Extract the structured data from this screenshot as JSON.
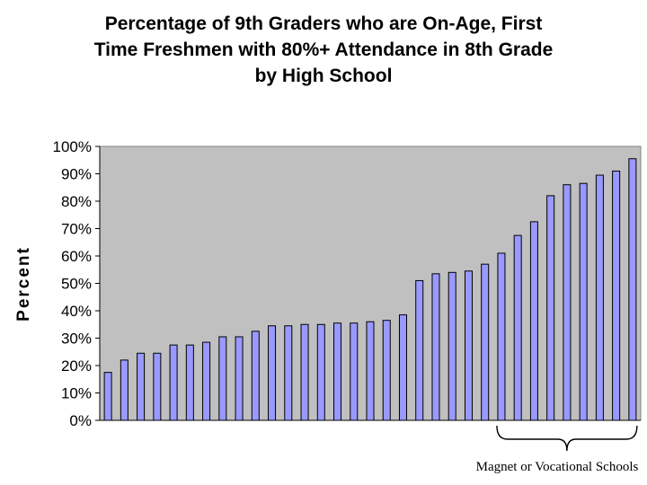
{
  "chart_data": {
    "type": "bar",
    "title_lines": [
      "Percentage of 9th Graders who are On-Age, First",
      "Time Freshmen with 80%+ Attendance in 8th Grade",
      "by High School"
    ],
    "xlabel": "",
    "ylabel": "Percent",
    "ylim": [
      0,
      100
    ],
    "yticks": [
      0,
      10,
      20,
      30,
      40,
      50,
      60,
      70,
      80,
      90,
      100
    ],
    "ytick_format": "%",
    "grid": false,
    "legend": "none",
    "values": [
      17.5,
      22,
      24.5,
      24.5,
      27.5,
      27.5,
      28.5,
      30.5,
      30.5,
      32.5,
      34.5,
      34.5,
      35,
      35,
      35.5,
      35.5,
      36,
      36.5,
      38.5,
      51,
      53.5,
      54,
      54.5,
      57,
      61,
      67.5,
      72.5,
      82,
      86,
      86.5,
      89.5,
      91,
      95.5
    ],
    "bar_color": "#9999ff",
    "plot_background": "#c0c0c0",
    "annotation": {
      "text": "Magnet or Vocational Schools",
      "from_index": 24,
      "to_index": 32
    }
  }
}
